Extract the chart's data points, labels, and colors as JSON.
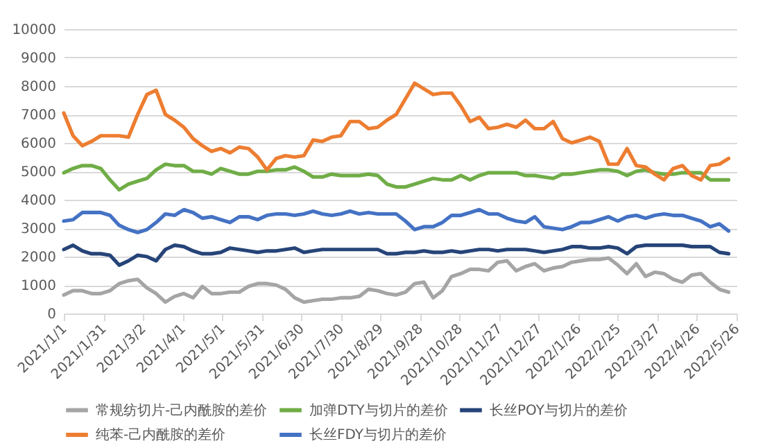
{
  "chart_data": {
    "type": "line",
    "x": [
      "2021-01-01",
      "2021-01-08",
      "2021-01-15",
      "2021-01-22",
      "2021-01-29",
      "2021-02-05",
      "2021-02-12",
      "2021-02-19",
      "2021-02-26",
      "2021-03-05",
      "2021-03-12",
      "2021-03-19",
      "2021-03-26",
      "2021-04-02",
      "2021-04-09",
      "2021-04-16",
      "2021-04-23",
      "2021-04-30",
      "2021-05-07",
      "2021-05-14",
      "2021-05-21",
      "2021-05-28",
      "2021-06-04",
      "2021-06-11",
      "2021-06-18",
      "2021-06-25",
      "2021-07-02",
      "2021-07-09",
      "2021-07-16",
      "2021-07-23",
      "2021-07-30",
      "2021-08-06",
      "2021-08-13",
      "2021-08-20",
      "2021-08-27",
      "2021-09-03",
      "2021-09-10",
      "2021-09-17",
      "2021-09-24",
      "2021-10-01",
      "2021-10-08",
      "2021-10-15",
      "2021-10-22",
      "2021-10-29",
      "2021-11-05",
      "2021-11-12",
      "2021-11-19",
      "2021-11-26",
      "2021-12-03",
      "2021-12-10",
      "2021-12-17",
      "2021-12-24",
      "2021-12-31",
      "2022-01-07",
      "2022-01-14",
      "2022-01-21",
      "2022-01-28",
      "2022-02-04",
      "2022-02-11",
      "2022-02-18",
      "2022-02-25",
      "2022-03-04",
      "2022-03-11",
      "2022-03-18",
      "2022-03-25",
      "2022-04-01",
      "2022-04-08",
      "2022-04-15",
      "2022-04-22",
      "2022-04-29",
      "2022-05-06",
      "2022-05-13",
      "2022-05-20"
    ],
    "series": [
      {
        "name": "常规纺切片-己内酰胺的差价",
        "color": "#a5a5a5",
        "values": [
          650,
          800,
          800,
          700,
          700,
          800,
          1050,
          1150,
          1200,
          900,
          700,
          400,
          600,
          700,
          550,
          950,
          700,
          700,
          750,
          750,
          950,
          1050,
          1050,
          1000,
          850,
          550,
          400,
          450,
          500,
          500,
          550,
          550,
          600,
          850,
          800,
          700,
          650,
          750,
          1050,
          1100,
          550,
          800,
          1300,
          1400,
          1550,
          1550,
          1500,
          1800,
          1850,
          1500,
          1650,
          1750,
          1500,
          1600,
          1650,
          1800,
          1850,
          1900,
          1900,
          1950,
          1700,
          1400,
          1750,
          1300,
          1450,
          1400,
          1200,
          1100,
          1350,
          1400,
          1100,
          850,
          750
        ]
      },
      {
        "name": "加弹DTY与切片的差价",
        "color": "#70ad47",
        "values": [
          4950,
          5100,
          5200,
          5200,
          5100,
          4700,
          4350,
          4550,
          4650,
          4750,
          5050,
          5250,
          5200,
          5200,
          5000,
          5000,
          4900,
          5100,
          5000,
          4900,
          4900,
          5000,
          5000,
          5050,
          5050,
          5150,
          5000,
          4800,
          4800,
          4900,
          4850,
          4850,
          4850,
          4900,
          4850,
          4550,
          4450,
          4450,
          4550,
          4650,
          4750,
          4700,
          4700,
          4850,
          4700,
          4850,
          4950,
          4950,
          4950,
          4950,
          4850,
          4850,
          4800,
          4750,
          4900,
          4900,
          4950,
          5000,
          5050,
          5050,
          5000,
          4850,
          5000,
          5050,
          4950,
          4900,
          4900,
          4950,
          4950,
          4950,
          4700,
          4700,
          4700
        ]
      },
      {
        "name": "长丝POY与切片的差价",
        "color": "#264478",
        "values": [
          2250,
          2400,
          2200,
          2100,
          2100,
          2050,
          1700,
          1850,
          2050,
          2000,
          1850,
          2250,
          2400,
          2350,
          2200,
          2100,
          2100,
          2150,
          2300,
          2250,
          2200,
          2150,
          2200,
          2200,
          2250,
          2300,
          2150,
          2200,
          2250,
          2250,
          2250,
          2250,
          2250,
          2250,
          2250,
          2100,
          2100,
          2150,
          2150,
          2200,
          2150,
          2150,
          2200,
          2150,
          2200,
          2250,
          2250,
          2200,
          2250,
          2250,
          2250,
          2200,
          2150,
          2200,
          2250,
          2350,
          2350,
          2300,
          2300,
          2350,
          2300,
          2100,
          2350,
          2400,
          2400,
          2400,
          2400,
          2400,
          2350,
          2350,
          2350,
          2150,
          2100
        ]
      },
      {
        "name": "纯苯-己内酰胺的差价",
        "color": "#ed7d31",
        "values": [
          7050,
          6250,
          5900,
          6050,
          6250,
          6250,
          6250,
          6200,
          7000,
          7700,
          7850,
          7000,
          6800,
          6550,
          6150,
          5900,
          5700,
          5800,
          5650,
          5850,
          5800,
          5500,
          5050,
          5450,
          5550,
          5500,
          5550,
          6100,
          6050,
          6200,
          6250,
          6750,
          6750,
          6500,
          6550,
          6800,
          7000,
          7550,
          8100,
          7900,
          7700,
          7750,
          7750,
          7300,
          6750,
          6900,
          6500,
          6550,
          6650,
          6550,
          6800,
          6500,
          6500,
          6750,
          6150,
          6000,
          6100,
          6200,
          6050,
          5250,
          5250,
          5800,
          5200,
          5150,
          4900,
          4700,
          5100,
          5200,
          4850,
          4700,
          5200,
          5250,
          5450
        ]
      },
      {
        "name": "长丝FDY与切片的差价",
        "color": "#4472c4",
        "values": [
          3250,
          3300,
          3550,
          3550,
          3550,
          3450,
          3100,
          2950,
          2850,
          2950,
          3200,
          3500,
          3450,
          3650,
          3550,
          3350,
          3400,
          3300,
          3200,
          3400,
          3400,
          3300,
          3450,
          3500,
          3500,
          3450,
          3500,
          3600,
          3500,
          3450,
          3500,
          3600,
          3500,
          3550,
          3500,
          3500,
          3500,
          3250,
          2950,
          3050,
          3050,
          3200,
          3450,
          3450,
          3550,
          3650,
          3500,
          3500,
          3350,
          3250,
          3200,
          3400,
          3050,
          3000,
          2950,
          3050,
          3200,
          3200,
          3300,
          3400,
          3250,
          3400,
          3450,
          3350,
          3450,
          3500,
          3450,
          3450,
          3350,
          3250,
          3050,
          3150,
          2900
        ]
      }
    ],
    "xlim": [
      "2021-01-01",
      "2022-05-26"
    ],
    "xticks": [
      {
        "value": "2021-01-01",
        "label": "2021/1/1"
      },
      {
        "value": "2021-01-31",
        "label": "2021/1/31"
      },
      {
        "value": "2021-03-02",
        "label": "2021/3/2"
      },
      {
        "value": "2021-04-01",
        "label": "2021/4/1"
      },
      {
        "value": "2021-05-01",
        "label": "2021/5/1"
      },
      {
        "value": "2021-05-31",
        "label": "2021/5/31"
      },
      {
        "value": "2021-06-30",
        "label": "2021/6/30"
      },
      {
        "value": "2021-07-30",
        "label": "2021/7/30"
      },
      {
        "value": "2021-08-29",
        "label": "2021/8/29"
      },
      {
        "value": "2021-09-28",
        "label": "2021/9/28"
      },
      {
        "value": "2021-10-28",
        "label": "2021/10/28"
      },
      {
        "value": "2021-11-27",
        "label": "2021/11/27"
      },
      {
        "value": "2021-12-27",
        "label": "2021/12/27"
      },
      {
        "value": "2022-01-26",
        "label": "2022/1/26"
      },
      {
        "value": "2022-02-25",
        "label": "2022/2/25"
      },
      {
        "value": "2022-03-27",
        "label": "2022/3/27"
      },
      {
        "value": "2022-04-26",
        "label": "2022/4/26"
      },
      {
        "value": "2022-05-26",
        "label": "2022/5/26"
      }
    ],
    "ylim": [
      0,
      10000
    ],
    "yticks": [
      0,
      1000,
      2000,
      3000,
      4000,
      5000,
      6000,
      7000,
      8000,
      9000,
      10000
    ],
    "grid": "y",
    "legend": "bottom",
    "line_style": "solid",
    "marker": "none"
  }
}
